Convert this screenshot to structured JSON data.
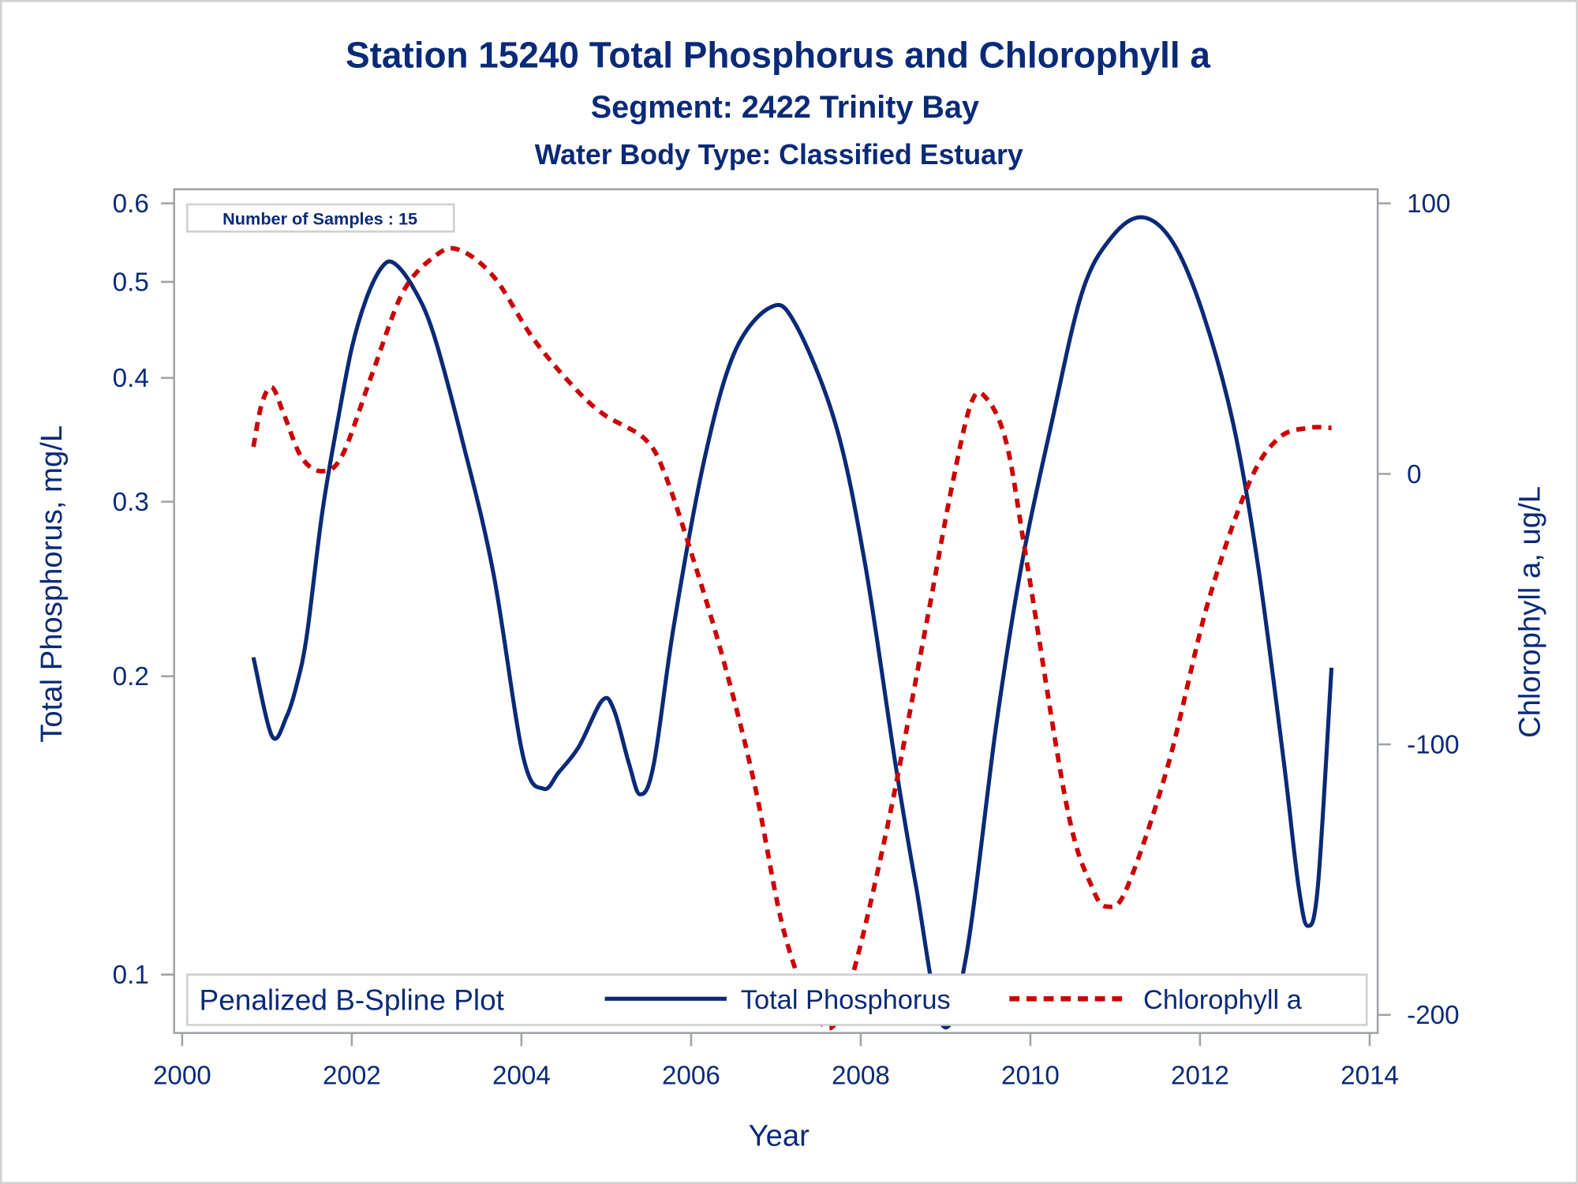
{
  "chart_data": {
    "type": "line",
    "title": "Station 15240  Total Phosphorus and Chlorophyll a",
    "subtitle": "Segment: 2422  Trinity Bay",
    "subtitle2": "Water Body Type: Classified Estuary",
    "xlabel": "Year",
    "ylabel_left": "Total Phosphorus, mg/L",
    "ylabel_right": "Chlorophyll a, ug/L",
    "xlim": [
      2000,
      2014
    ],
    "x_ticks": [
      2000,
      2002,
      2004,
      2006,
      2008,
      2010,
      2012,
      2014
    ],
    "ylim_left": [
      0.1,
      0.6
    ],
    "y_left_scale": "log",
    "y_left_ticks": [
      0.1,
      0.2,
      0.3,
      0.4,
      0.5,
      0.6
    ],
    "ylim_right": [
      -200,
      100
    ],
    "y_right_ticks": [
      -200,
      -100,
      0,
      100
    ],
    "grid": false,
    "annotation": "Number of Samples : 15",
    "legend": {
      "title": "Penalized B-Spline Plot",
      "position": "bottom-inside",
      "entries": [
        "Total Phosphorus",
        "Chlorophyll a"
      ]
    },
    "series": [
      {
        "name": "Total Phosphorus",
        "axis": "left",
        "style": "solid",
        "color": "#0a2a78",
        "x": [
          2000.84,
          2001.06,
          2001.23,
          2001.35,
          2001.47,
          2001.65,
          2001.83,
          2002.0,
          2002.18,
          2002.36,
          2002.5,
          2002.72,
          2002.96,
          2003.31,
          2003.67,
          2004.02,
          2004.26,
          2004.44,
          2004.68,
          2004.95,
          2005.09,
          2005.27,
          2005.4,
          2005.56,
          2005.8,
          2006.16,
          2006.51,
          2006.93,
          2007.22,
          2007.7,
          2008.05,
          2008.41,
          2008.65,
          2008.96,
          2009.24,
          2009.6,
          2009.9,
          2010.25,
          2010.61,
          2010.96,
          2011.32,
          2011.68,
          2012.03,
          2012.39,
          2012.68,
          2012.98,
          2013.16,
          2013.27,
          2013.39,
          2013.55
        ],
        "y": [
          0.209,
          0.174,
          0.182,
          0.196,
          0.22,
          0.292,
          0.36,
          0.429,
          0.483,
          0.518,
          0.522,
          0.494,
          0.444,
          0.344,
          0.254,
          0.166,
          0.154,
          0.16,
          0.17,
          0.189,
          0.185,
          0.163,
          0.152,
          0.163,
          0.226,
          0.332,
          0.424,
          0.471,
          0.455,
          0.36,
          0.26,
          0.163,
          0.123,
          0.089,
          0.104,
          0.179,
          0.26,
          0.36,
          0.488,
          0.555,
          0.581,
          0.548,
          0.466,
          0.36,
          0.26,
          0.166,
          0.123,
          0.112,
          0.123,
          0.204
        ]
      },
      {
        "name": "Chlorophyll a",
        "axis": "right",
        "style": "dashed",
        "color": "#cc0000",
        "x": [
          2000.84,
          2000.94,
          2001.06,
          2001.2,
          2001.41,
          2001.65,
          2001.89,
          2002.24,
          2002.6,
          2002.96,
          2003.25,
          2003.67,
          2004.14,
          2004.62,
          2004.97,
          2005.45,
          2005.69,
          2006.04,
          2006.4,
          2006.75,
          2007.11,
          2007.53,
          2007.82,
          2008.29,
          2008.77,
          2009.06,
          2009.3,
          2009.48,
          2009.72,
          2009.96,
          2010.43,
          2010.73,
          2010.91,
          2011.14,
          2011.62,
          2012.09,
          2012.57,
          2012.92,
          2013.27,
          2013.55
        ],
        "y": [
          10,
          26,
          32,
          22,
          6,
          1,
          7,
          37,
          67,
          80,
          83,
          73,
          50,
          32,
          22,
          13,
          0,
          -33,
          -71,
          -115,
          -171,
          -203,
          -194,
          -134,
          -56,
          -7,
          26,
          28,
          11,
          -33,
          -123,
          -153,
          -160,
          -153,
          -108,
          -48,
          -4,
          13,
          17,
          17
        ]
      }
    ]
  }
}
